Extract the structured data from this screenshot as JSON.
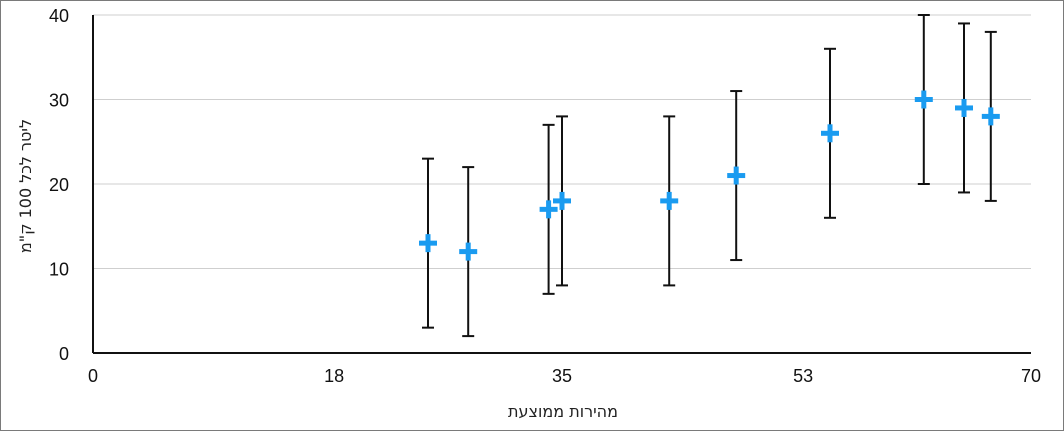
{
  "chart_data": {
    "type": "scatter",
    "xlabel": "מהירות ממוצעת",
    "ylabel": "ליטר לכל 100 ק\"מ",
    "xlim": [
      0,
      70
    ],
    "ylim": [
      0,
      40
    ],
    "x_ticks": [
      "0",
      "18",
      "35",
      "53",
      "70"
    ],
    "y_ticks": [
      "0",
      "10",
      "20",
      "30",
      "40"
    ],
    "grid": "horizontal",
    "marker": "plus",
    "series": [
      {
        "points": [
          {
            "x": 25,
            "y": 13,
            "err_low": 3,
            "err_high": 23
          },
          {
            "x": 28,
            "y": 12,
            "err_low": 2,
            "err_high": 22
          },
          {
            "x": 34,
            "y": 17,
            "err_low": 7,
            "err_high": 27
          },
          {
            "x": 35,
            "y": 18,
            "err_low": 8,
            "err_high": 28
          },
          {
            "x": 43,
            "y": 18,
            "err_low": 8,
            "err_high": 28
          },
          {
            "x": 48,
            "y": 21,
            "err_low": 11,
            "err_high": 31
          },
          {
            "x": 55,
            "y": 26,
            "err_low": 16,
            "err_high": 36
          },
          {
            "x": 62,
            "y": 30,
            "err_low": 20,
            "err_high": 40
          },
          {
            "x": 65,
            "y": 29,
            "err_low": 19,
            "err_high": 39
          },
          {
            "x": 67,
            "y": 28,
            "err_low": 18,
            "err_high": 38
          }
        ]
      }
    ],
    "colors": {
      "marker": "#1a9bf0",
      "error_bar": "#111111",
      "grid": "#cfcfcf",
      "axis": "#111111"
    }
  }
}
